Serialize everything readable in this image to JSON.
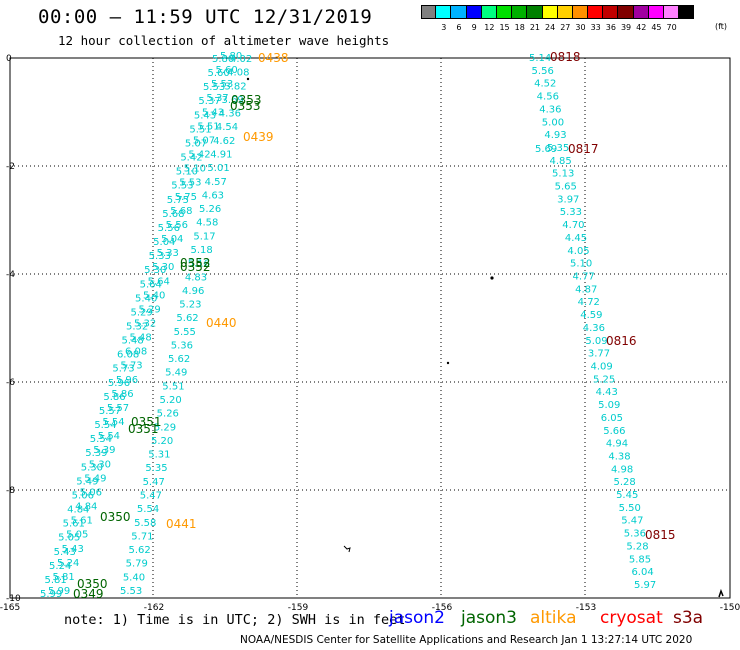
{
  "header": {
    "title": "00:00 – 11:59 UTC 12/31/2019",
    "subtitle": "12 hour collection of altimeter wave heights"
  },
  "scale": {
    "unit": "(ft)",
    "bins": [
      {
        "label": "",
        "color": "#808080"
      },
      {
        "label": "3",
        "color": "#00ffff"
      },
      {
        "label": "6",
        "color": "#00b3ff"
      },
      {
        "label": "9",
        "color": "#0000ff"
      },
      {
        "label": "12",
        "color": "#00ff80"
      },
      {
        "label": "15",
        "color": "#00e000"
      },
      {
        "label": "18",
        "color": "#00b000"
      },
      {
        "label": "21",
        "color": "#008000"
      },
      {
        "label": "24",
        "color": "#ffff00"
      },
      {
        "label": "27",
        "color": "#ffd000"
      },
      {
        "label": "30",
        "color": "#ff9000"
      },
      {
        "label": "33",
        "color": "#ff0000"
      },
      {
        "label": "36",
        "color": "#c00000"
      },
      {
        "label": "39",
        "color": "#800000"
      },
      {
        "label": "42",
        "color": "#a000a0"
      },
      {
        "label": "45",
        "color": "#ff00ff"
      },
      {
        "label": "70",
        "color": "#ff80ff"
      },
      {
        "label": "",
        "color": "#000000"
      }
    ]
  },
  "axes": {
    "x_ticks": [
      "-165",
      "-162",
      "-159",
      "-156",
      "-153",
      "-150"
    ],
    "y_ticks": [
      "0",
      "-2",
      "-4",
      "-6",
      "-8",
      "-10"
    ]
  },
  "colors": {
    "jason2": "#0000ff",
    "jason3": "#006400",
    "altika": "#ff9900",
    "cryosat": "#ff0000",
    "s3a": "#800000",
    "swh": "#00cccc"
  },
  "tracks": {
    "east": [
      "5.14",
      "5.56",
      "4.52",
      "4.56",
      "4.36",
      "5.00",
      "4.93",
      "5.35",
      "4.85",
      "5.13",
      "5.65",
      "3.97",
      "5.33",
      "4.70",
      "4.45",
      "4.05",
      "5.10",
      "4.77",
      "4.87",
      "4.72",
      "4.59",
      "4.36",
      "5.09",
      "3.77",
      "4.09",
      "5.25",
      "4.43",
      "5.09",
      "6.05",
      "5.66",
      "4.94",
      "4.38",
      "4.98",
      "5.28",
      "5.45",
      "5.50",
      "5.47",
      "5.36",
      "5.28",
      "5.85",
      "6.04",
      "5.97"
    ],
    "east_extra": [
      "5.69"
    ],
    "middle": [
      "4.02",
      "4.08",
      "3.82",
      "3.69",
      "4.36",
      "4.54",
      "4.62",
      "4.91",
      "5.01",
      "4.57",
      "4.63",
      "5.26",
      "4.58",
      "5.17",
      "5.18",
      "5.16",
      "4.83",
      "4.96",
      "5.23",
      "5.62",
      "5.55",
      "5.36",
      "5.62",
      "5.49",
      "5.51",
      "5.20",
      "5.26",
      "5.29",
      "5.20",
      "5.31",
      "5.35",
      "5.47",
      "5.47",
      "5.54",
      "5.58",
      "5.71",
      "5.62",
      "5.79",
      "5.40",
      "5.53"
    ],
    "west": [
      "5.99",
      "5.81",
      "5.24",
      "5.43",
      "5.05",
      "5.61",
      "4.84",
      "5.06",
      "5.49",
      "5.30",
      "5.39",
      "5.54",
      "5.54",
      "5.57",
      "5.86",
      "5.96",
      "5.73",
      "6.08",
      "5.48",
      "5.32",
      "5.29",
      "5.40",
      "5.64",
      "5.30",
      "5.33",
      "5.04",
      "5.56",
      "5.68",
      "5.75",
      "5.53",
      "5.10",
      "5.42",
      "5.07",
      "5.51",
      "5.43",
      "5.37",
      "5.53",
      "5.60",
      "5.80"
    ]
  },
  "time_labels": {
    "jason3": [
      "0353",
      "0353",
      "0352",
      "0352",
      "0351",
      "0351",
      "0350",
      "0350",
      "0349"
    ],
    "altika": [
      "0438",
      "0439",
      "0440",
      "0441"
    ],
    "s3a": [
      "0818",
      "0817",
      "0816",
      "0815"
    ]
  },
  "note": "note: 1) Time is in UTC; 2) SWH is in feet",
  "legend": {
    "jason2": "jason2",
    "jason3": "jason3",
    "altika": "altika",
    "cryosat": "cryosat",
    "s3a": "s3a"
  },
  "credit": "NOAA/NESDIS Center for Satellite Applications and Research   Jan  1 13:27:14 UTC 2020"
}
